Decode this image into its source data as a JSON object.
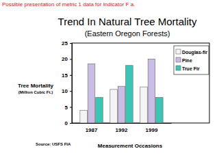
{
  "chart_data": {
    "type": "bar",
    "note": "Possible presentation of metric 1 data for Indicator F a.",
    "title": "Trend In Natural Tree Mortality",
    "subtitle": "(Eastern Oregon Forests)",
    "y_label": "Tree Mortality",
    "y_unit": "(Million Cubic Ft.)",
    "x_label": "Measurement Occasions",
    "source": "Source: USFS FIA",
    "categories": [
      "1987",
      "1992",
      "1999"
    ],
    "series": [
      {
        "name": "Douglas-fir",
        "color": "#f4f4f4",
        "values": [
          4,
          10.5,
          11.3
        ]
      },
      {
        "name": "Pine",
        "color": "#c9bde6",
        "values": [
          18.5,
          11.5,
          20
        ]
      },
      {
        "name": "True Fir",
        "color": "#3cc4b4",
        "values": [
          8,
          18,
          8
        ]
      }
    ],
    "ylim": [
      0,
      25
    ],
    "yticks": [
      0,
      5,
      10,
      15,
      20,
      25
    ],
    "grid": false,
    "legend": "top-right"
  }
}
